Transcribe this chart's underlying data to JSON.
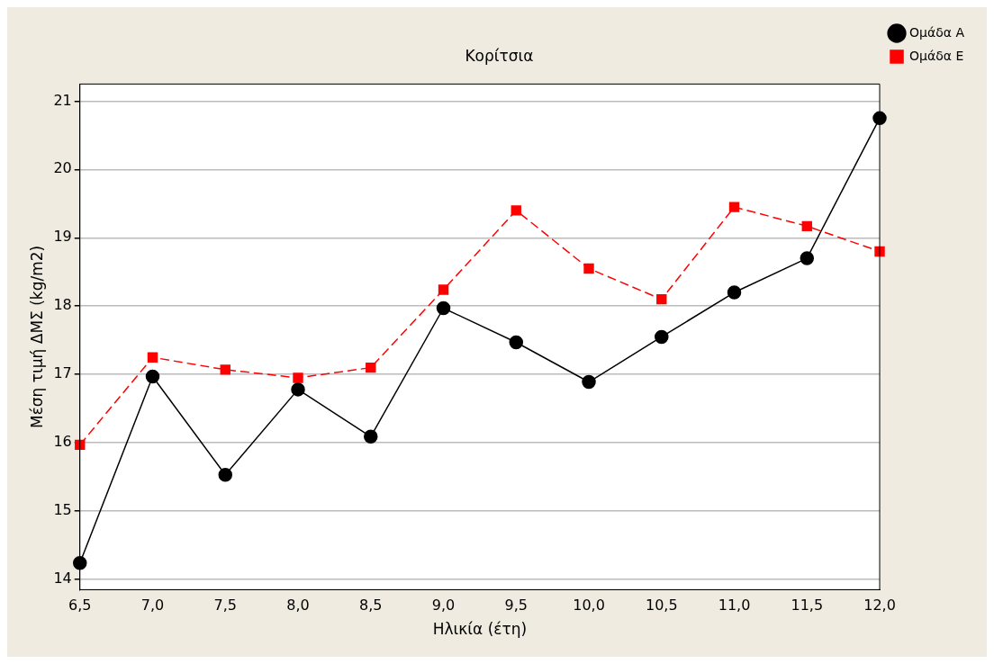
{
  "chart_data": {
    "type": "line",
    "title": "Κορίτσια",
    "xlabel": "Ηλικία (έτη)",
    "ylabel": "Μέση τιμή ΔΜΣ (kg/m2)",
    "categories": [
      "6,5",
      "7,0",
      "7,5",
      "8,0",
      "8,5",
      "9,0",
      "9,5",
      "10,0",
      "10,5",
      "11,0",
      "11,5",
      "12,0"
    ],
    "series": [
      {
        "name": "Ομάδα Α",
        "color": "#000000",
        "marker": "circle",
        "line_style": "solid",
        "values": [
          14.24,
          16.97,
          15.53,
          16.78,
          16.09,
          17.97,
          17.47,
          16.89,
          17.55,
          18.2,
          18.7,
          20.75
        ]
      },
      {
        "name": "Ομάδα Ε",
        "color": "#ff0000",
        "marker": "square",
        "line_style": "dashed",
        "values": [
          15.97,
          17.25,
          17.07,
          16.95,
          17.1,
          18.24,
          19.4,
          18.55,
          18.1,
          19.45,
          19.17,
          18.8
        ]
      }
    ],
    "ylim": [
      13.85,
      21.25
    ],
    "yticks": [
      14,
      15,
      16,
      17,
      18,
      19,
      20,
      21
    ],
    "grid": "y",
    "legend": "top right"
  }
}
